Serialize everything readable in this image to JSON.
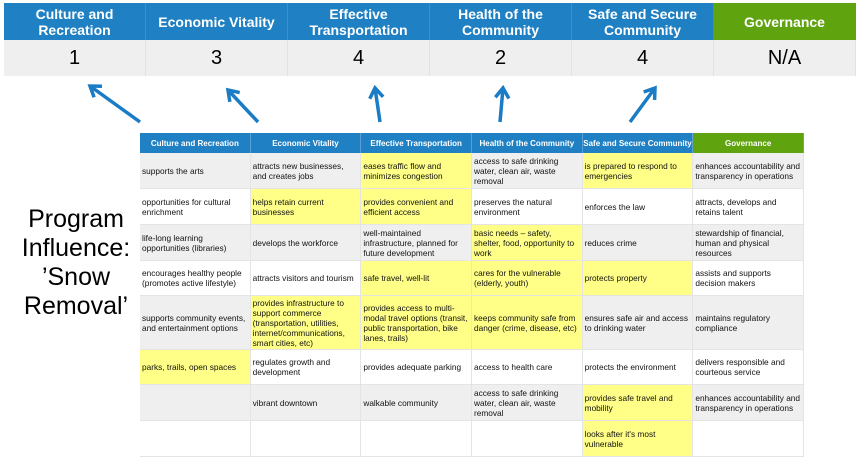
{
  "columns": [
    "Culture and Recreation",
    "Economic Vitality",
    "Effective Transportation",
    "Health of the Community",
    "Safe and Secure Community",
    "Governance"
  ],
  "scores": [
    "1",
    "3",
    "4",
    "2",
    "4",
    "N/A"
  ],
  "colors": {
    "header_blue": "#1f80c3",
    "governance_green": "#5fa40f",
    "highlight_yellow": "#ffff88",
    "arrow_blue": "#1a7cc4"
  },
  "program_label": "Program Influence: ’Snow Removal’",
  "rows": [
    [
      "supports the arts",
      "attracts new businesses, and creates jobs",
      "eases traffic flow and minimizes congestion",
      "access to safe drinking water, clean air, waste removal",
      "is prepared to respond to emergencies",
      "enhances accountability and transparency in operations"
    ],
    [
      "opportunities for cultural enrichment",
      "helps retain current businesses",
      "provides convenient and efficient access",
      "preserves the natural environment",
      "enforces the law",
      "attracts, develops and retains talent"
    ],
    [
      "life-long learning opportunities (libraries)",
      "develops the workforce",
      "well-maintained infrastructure, planned for future development",
      "basic needs – safety, shelter, food, opportunity to work",
      "reduces crime",
      "stewardship of financial, human and physical resources"
    ],
    [
      "encourages healthy people (promotes active lifestyle)",
      "attracts visitors and tourism",
      "safe travel, well-lit",
      "cares for the vulnerable (elderly, youth)",
      "protects property",
      "assists and supports decision makers"
    ],
    [
      "supports community events, and entertainment options",
      "provides infrastructure to support commerce (transportation, utilities, internet/communications, smart cities, etc)",
      "provides access to multi-modal travel options (transit, public transportation, bike lanes, trails)",
      "keeps community safe from danger (crime, disease, etc)",
      "ensures safe air and access to drinking water",
      "maintains regulatory compliance"
    ],
    [
      "parks, trails, open spaces",
      "regulates growth and development",
      "provides adequate parking",
      "access to health care",
      "protects the environment",
      "delivers responsible and courteous service"
    ],
    [
      "",
      "vibrant downtown",
      "walkable community",
      "access to safe drinking water, clean air, waste removal",
      "provides safe travel and mobility",
      "enhances accountability and transparency in operations"
    ],
    [
      "",
      "",
      "",
      "",
      "looks after it's most vulnerable",
      ""
    ]
  ],
  "highlighted": [
    [
      2,
      4
    ],
    [
      1,
      2
    ],
    [
      3
    ],
    [
      2,
      3,
      4
    ],
    [
      1,
      2,
      3
    ],
    [
      0
    ],
    [
      4
    ],
    [
      4
    ]
  ]
}
